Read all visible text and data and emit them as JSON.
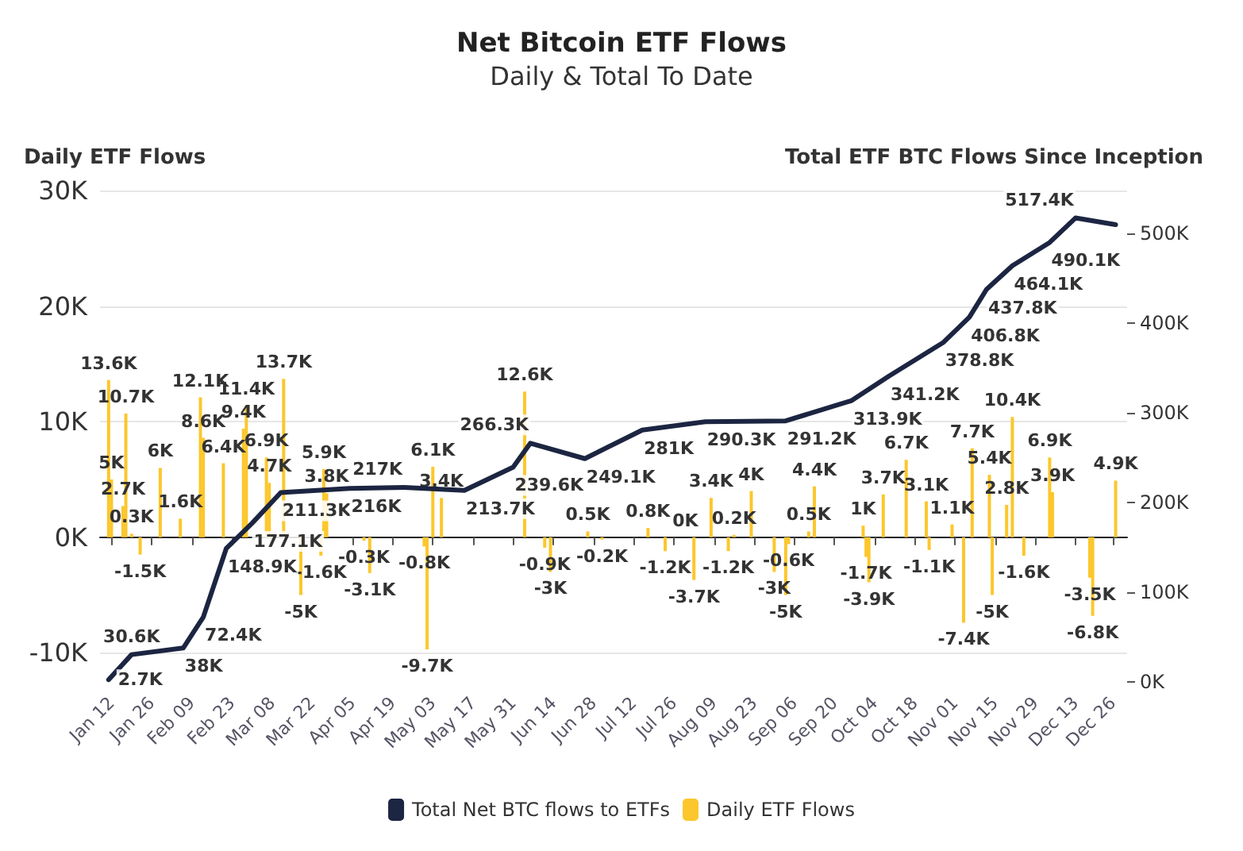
{
  "chart_data": {
    "type": "bar",
    "title": "Net Bitcoin ETF Flows",
    "subtitle": "Daily & Total To Date",
    "ylabel": "Daily ETF Flows",
    "y2label": "Total ETF BTC Flows Since Inception",
    "xlim": [
      "--01-08",
      "--12-31"
    ],
    "xticks": [
      {
        "value": "--01-12",
        "label": "Jan 12"
      },
      {
        "value": "--01-26",
        "label": "Jan 26"
      },
      {
        "value": "--02-09",
        "label": "Feb 09"
      },
      {
        "value": "--02-23",
        "label": "Feb 23"
      },
      {
        "value": "--03-08",
        "label": "Mar 08"
      },
      {
        "value": "--03-22",
        "label": "Mar 22"
      },
      {
        "value": "--04-05",
        "label": "Apr 05"
      },
      {
        "value": "--04-19",
        "label": "Apr 19"
      },
      {
        "value": "--05-03",
        "label": "May 03"
      },
      {
        "value": "--05-17",
        "label": "May 17"
      },
      {
        "value": "--05-31",
        "label": "May 31"
      },
      {
        "value": "--06-14",
        "label": "Jun 14"
      },
      {
        "value": "--06-28",
        "label": "Jun 28"
      },
      {
        "value": "--07-12",
        "label": "Jul 12"
      },
      {
        "value": "--07-26",
        "label": "Jul 26"
      },
      {
        "value": "--08-09",
        "label": "Aug 09"
      },
      {
        "value": "--08-23",
        "label": "Aug 23"
      },
      {
        "value": "--09-06",
        "label": "Sep 06"
      },
      {
        "value": "--09-20",
        "label": "Sep 20"
      },
      {
        "value": "--10-04",
        "label": "Oct 04"
      },
      {
        "value": "--10-18",
        "label": "Oct 18"
      },
      {
        "value": "--11-01",
        "label": "Nov 01"
      },
      {
        "value": "--11-15",
        "label": "Nov 15"
      },
      {
        "value": "--11-29",
        "label": "Nov 29"
      },
      {
        "value": "--12-13",
        "label": "Dec 13"
      },
      {
        "value": "--12-26",
        "label": "Dec 26"
      }
    ],
    "ylim": [
      -13,
      30
    ],
    "yticks": [
      {
        "value": -10,
        "label": "-10K"
      },
      {
        "value": 0,
        "label": "0K"
      },
      {
        "value": 10,
        "label": "10K"
      },
      {
        "value": 20,
        "label": "20K"
      },
      {
        "value": 30,
        "label": "30K"
      }
    ],
    "y2lim": [
      -6,
      548
    ],
    "y2ticks": [
      {
        "value": 0,
        "label": "0K"
      },
      {
        "value": 100,
        "label": "100K"
      },
      {
        "value": 200,
        "label": "200K"
      },
      {
        "value": 300,
        "label": "300K"
      },
      {
        "value": 400,
        "label": "400K"
      },
      {
        "value": 500,
        "label": "500K"
      }
    ],
    "grid": "y",
    "legend": "bottom",
    "marker": "none",
    "line_style": "solid",
    "series": [
      {
        "name": "Total Net BTC flows to ETFs",
        "type": "line",
        "axis": "y2",
        "color": "#1c2541",
        "x": [
          "--01-11",
          "--01-19",
          "--02-06",
          "--02-13",
          "--02-21",
          "--03-01",
          "--03-11",
          "--04-04",
          "--04-23",
          "--05-14",
          "--05-31",
          "--06-06",
          "--06-25",
          "--07-15",
          "--08-06",
          "--09-03",
          "--09-26",
          "--10-09",
          "--10-28",
          "--11-06",
          "--11-12",
          "--11-21",
          "--12-04",
          "--12-13",
          "--12-27"
        ],
        "values": [
          2.7,
          30.6,
          38,
          72.4,
          148.9,
          177.1,
          211.3,
          216,
          217,
          213.7,
          239.6,
          266.3,
          249.1,
          281,
          290.3,
          291.2,
          313.9,
          341.2,
          378.8,
          406.8,
          437.8,
          464.1,
          490.1,
          517.4,
          510
        ],
        "value_labels": [
          "2.7K",
          "30.6K",
          "38K",
          "72.4K",
          "148.9K",
          "177.1K",
          "211.3K",
          "216K",
          "217K",
          "213.7K",
          "239.6K",
          "266.3K",
          "249.1K",
          "281K",
          "290.3K",
          "291.2K",
          "313.9K",
          "341.2K",
          "378.8K",
          "406.8K",
          "437.8K",
          "464.1K",
          "490.1K",
          "517.4K",
          null
        ]
      },
      {
        "name": "Daily ETF Flows",
        "color": "#fcc72c",
        "x": [
          "--01-11",
          "--01-12",
          "--01-16",
          "--01-17",
          "--01-19",
          "--01-22",
          "--01-29",
          "--02-05",
          "--02-12",
          "--02-13",
          "--02-20",
          "--02-27",
          "--02-28",
          "--03-06",
          "--03-07",
          "--03-12",
          "--03-18",
          "--03-25",
          "--03-26",
          "--03-27",
          "--04-09",
          "--04-11",
          "--04-30",
          "--05-01",
          "--05-03",
          "--05-06",
          "--06-04",
          "--06-11",
          "--06-13",
          "--06-26",
          "--07-01",
          "--07-17",
          "--07-23",
          "--07-30",
          "--08-02",
          "--08-08",
          "--08-14",
          "--08-16",
          "--08-22",
          "--08-30",
          "--09-03",
          "--09-04",
          "--09-11",
          "--09-13",
          "--09-30",
          "--10-01",
          "--10-02",
          "--10-07",
          "--10-15",
          "--10-22",
          "--10-23",
          "--10-31",
          "--11-04",
          "--11-07",
          "--11-13",
          "--11-14",
          "--11-19",
          "--11-21",
          "--11-25",
          "--12-04",
          "--12-05",
          "--12-18",
          "--12-19",
          "--12-27"
        ],
        "values": [
          13.6,
          5,
          2.7,
          10.7,
          0.3,
          -1.5,
          6,
          1.6,
          12.1,
          8.6,
          6.4,
          9.4,
          11.4,
          6.9,
          4.7,
          13.7,
          -5,
          -1.6,
          5.9,
          3.8,
          -0.3,
          -3.1,
          -0.8,
          -9.7,
          6.1,
          3.4,
          12.6,
          -0.9,
          -3,
          0.5,
          -0.2,
          0.8,
          -1.2,
          0,
          -3.7,
          3.4,
          -1.2,
          0.2,
          4,
          -3,
          -5,
          -0.6,
          0.5,
          4.4,
          1,
          -1.7,
          -3.9,
          3.7,
          6.7,
          3.1,
          -1.1,
          1.1,
          -7.4,
          7.7,
          5.4,
          -5,
          2.8,
          10.4,
          -1.6,
          6.9,
          3.9,
          -3.5,
          -6.8,
          4.9
        ],
        "value_labels": [
          "13.6K",
          "5K",
          "2.7K",
          "10.7K",
          "0.3K",
          "-1.5K",
          "6K",
          "1.6K",
          "12.1K",
          "8.6K",
          "6.4K",
          "9.4K",
          "11.4K",
          "6.9K",
          "4.7K",
          "13.7K",
          "-5K",
          "-1.6K",
          "5.9K",
          "3.8K",
          "-0.3K",
          "-3.1K",
          "-0.8K",
          "-9.7K",
          "6.1K",
          "3.4K",
          "12.6K",
          "-0.9K",
          "-3K",
          "0.5K",
          "-0.2K",
          "0.8K",
          "-1.2K",
          "0K",
          "-3.7K",
          "3.4K",
          "-1.2K",
          "0.2K",
          "4K",
          "-3K",
          "-5K",
          "-0.6K",
          "0.5K",
          "4.4K",
          "1K",
          "-1.7K",
          "-3.9K",
          "3.7K",
          "6.7K",
          "3.1K",
          "-1.1K",
          "1.1K",
          "-7.4K",
          "7.7K",
          "5.4K",
          "-5K",
          "2.8K",
          "10.4K",
          "-1.6K",
          "6.9K",
          "3.9K",
          "-3.5K",
          "-6.8K",
          "4.9K"
        ]
      }
    ]
  }
}
